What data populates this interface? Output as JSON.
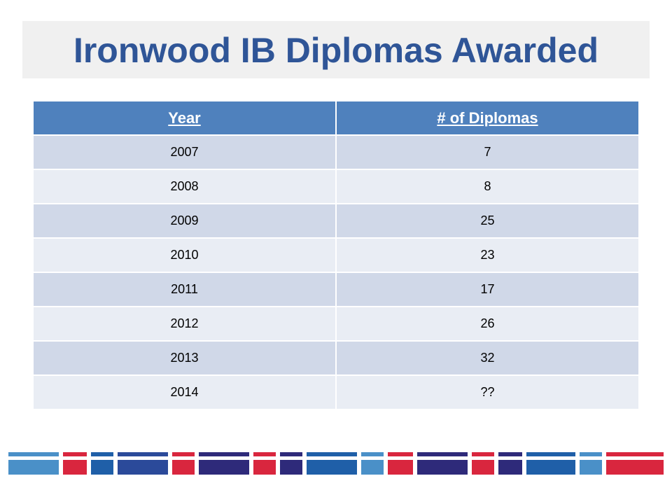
{
  "title": "Ironwood IB Diplomas Awarded",
  "table": {
    "header": [
      "Year",
      "# of Diplomas"
    ],
    "rows": [
      [
        2007,
        7
      ],
      [
        2008,
        8
      ],
      [
        2009,
        25
      ],
      [
        2010,
        23
      ],
      [
        2011,
        17
      ],
      [
        2012,
        26
      ],
      [
        2013,
        32
      ],
      [
        2014,
        "??"
      ]
    ]
  }
}
